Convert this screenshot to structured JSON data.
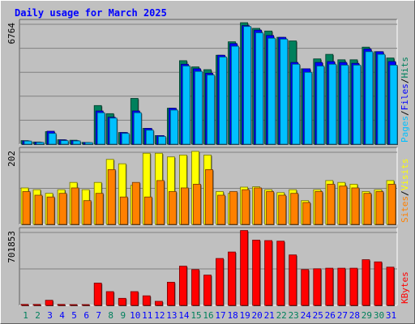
{
  "chart_data": {
    "type": "bar",
    "title": "Daily usage for March 2025",
    "categories": [
      "1",
      "2",
      "3",
      "4",
      "5",
      "6",
      "7",
      "8",
      "9",
      "10",
      "11",
      "12",
      "13",
      "14",
      "15",
      "16",
      "17",
      "18",
      "19",
      "20",
      "21",
      "22",
      "23",
      "24",
      "25",
      "26",
      "27",
      "28",
      "29",
      "30",
      "31"
    ],
    "weekend_days": [
      "1",
      "2",
      "8",
      "9",
      "15",
      "16",
      "22",
      "23",
      "29",
      "30"
    ],
    "panels": [
      {
        "id": "requests",
        "max_label": "6764",
        "ylim": [
          0,
          6764
        ],
        "series": [
          {
            "name": "Hits",
            "color": "#00805c",
            "values": [
              200,
              120,
              700,
              250,
              220,
              100,
              2150,
              1700,
              650,
              2550,
              880,
              480,
              2000,
              4650,
              4300,
              4150,
              4950,
              5700,
              6764,
              6450,
              6300,
              5950,
              5750,
              4200,
              4750,
              5000,
              4700,
              4700,
              5400,
              5150,
              4800
            ]
          },
          {
            "name": "Files",
            "color": "#0000ff",
            "values": [
              180,
              110,
              720,
              240,
              200,
              95,
              1850,
              1500,
              650,
              1850,
              880,
              480,
              2000,
              4450,
              4200,
              3950,
              4950,
              5600,
              6600,
              6350,
              6050,
              5950,
              4550,
              4200,
              4550,
              4600,
              4550,
              4500,
              5300,
              5150,
              4600
            ]
          },
          {
            "name": "Pages",
            "color": "#00c0ff",
            "values": [
              170,
              100,
              600,
              200,
              180,
              90,
              1750,
              1450,
              600,
              1750,
              780,
              430,
              1900,
              4350,
              4050,
              3850,
              4850,
              5450,
              6550,
              6200,
              5900,
              5850,
              4450,
              4000,
              4350,
              4450,
              4400,
              4400,
              5150,
              5000,
              4400
            ]
          }
        ]
      },
      {
        "id": "visitors",
        "max_label": "202",
        "ylim": [
          0,
          202
        ],
        "series": [
          {
            "name": "Visits",
            "color": "#ffff00",
            "values": [
              100,
              95,
              85,
              95,
              115,
              95,
              115,
              178,
              166,
              107,
              195,
              195,
              185,
              190,
              200,
              190,
              90,
              85,
              102,
              103,
              95,
              87,
              95,
              65,
              95,
              120,
              115,
              110,
              90,
              95,
              120
            ]
          },
          {
            "name": "Sites",
            "color": "#ff8000",
            "values": [
              90,
              80,
              75,
              85,
              100,
              65,
              85,
              150,
              75,
              115,
              75,
              120,
              90,
              100,
              110,
              150,
              80,
              90,
              95,
              100,
              90,
              80,
              85,
              60,
              90,
              110,
              105,
              100,
              85,
              90,
              110
            ]
          }
        ]
      },
      {
        "id": "kbytes",
        "max_label": "701853",
        "ylim": [
          0,
          701853
        ],
        "series": [
          {
            "name": "KBytes",
            "color": "#ff0000",
            "values": [
              9000,
              9000,
              48000,
              9000,
              8000,
              8000,
              210000,
              130000,
              66000,
              130000,
              90000,
              38000,
              218000,
              369000,
              337000,
              285000,
              442000,
              503000,
              705000,
              615000,
              610000,
              605000,
              475000,
              337000,
              345000,
              350000,
              350000,
              350000,
              430000,
              410000,
              360000
            ]
          }
        ]
      }
    ]
  },
  "colors": {
    "title": "#0000ff",
    "background": "#c0c0c0",
    "weekday_label": "#0000ff",
    "weekend_label": "#00805c"
  }
}
